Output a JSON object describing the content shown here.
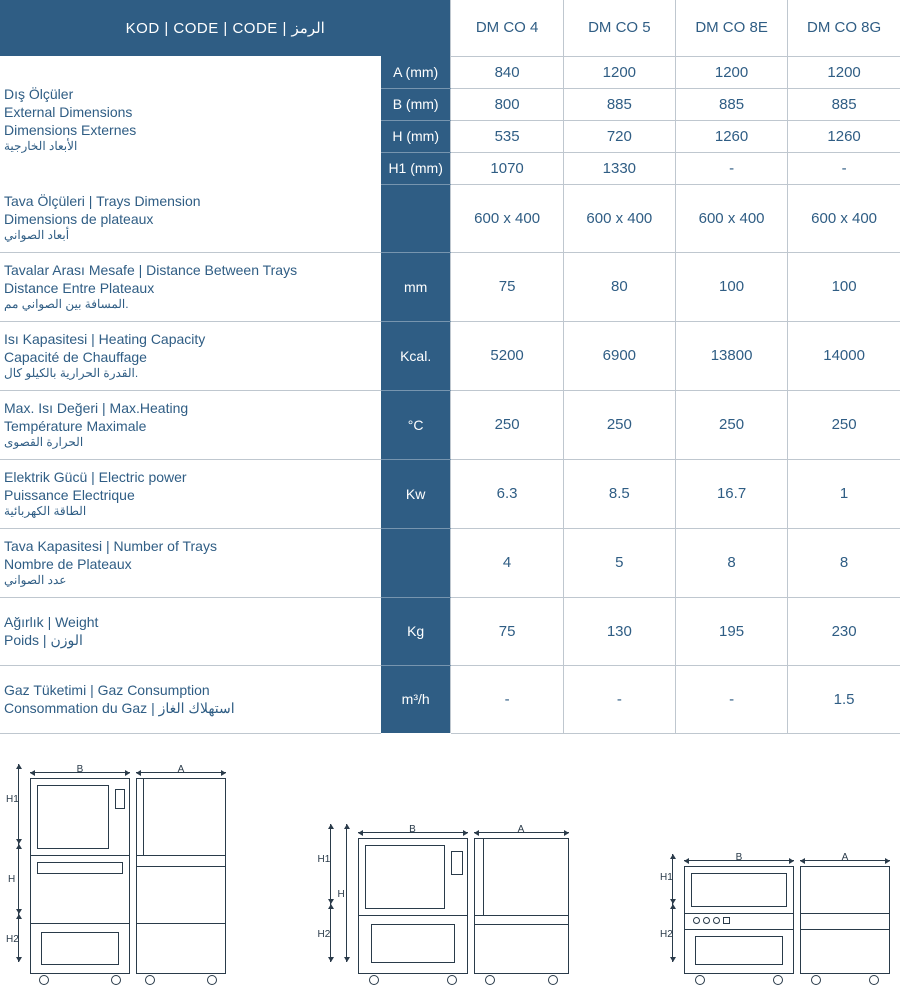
{
  "header": {
    "label": "KOD | CODE | CODE | الرمز",
    "cols": [
      "DM CO 4",
      "DM CO 5",
      "DM CO 8E",
      "DM CO 8G"
    ]
  },
  "dimLabel": {
    "l1": "Dış Ölçüler",
    "l2": "External Dimensions",
    "l3": "Dimensions Externes",
    "l4": "الأبعاد الخارجية"
  },
  "dimRows": [
    {
      "unit": "A (mm)",
      "v": [
        "840",
        "1200",
        "1200",
        "1200"
      ]
    },
    {
      "unit": "B (mm)",
      "v": [
        "800",
        "885",
        "885",
        "885"
      ]
    },
    {
      "unit": "H (mm)",
      "v": [
        "535",
        "720",
        "1260",
        "1260"
      ]
    },
    {
      "unit": "H1 (mm)",
      "v": [
        "1070",
        "1330",
        "-",
        "-"
      ]
    }
  ],
  "rows": [
    {
      "l1": "Tava Ölçüleri | Trays Dimension",
      "l2": "Dimensions de plateaux",
      "l3": "أبعاد الصواني",
      "unit": "",
      "v": [
        "600 x 400",
        "600 x 400",
        "600 x 400",
        "600 x 400"
      ]
    },
    {
      "l1": "Tavalar Arası Mesafe | Distance Between Trays",
      "l2": "Distance Entre Plateaux",
      "l3": "المسافة بين الصواني  مم.",
      "unit": "mm",
      "v": [
        "75",
        "80",
        "100",
        "100"
      ]
    },
    {
      "l1": "Isı Kapasitesi | Heating Capacity",
      "l2": "Capacité de Chauffage",
      "l3": "القدرة الحرارية بالكيلو كال.",
      "unit": "Kcal.",
      "v": [
        "5200",
        "6900",
        "13800",
        "14000"
      ]
    },
    {
      "l1": "Max. Isı Değeri | Max.Heating",
      "l2": "Température Maximale",
      "l3": "الحرارة القصوى",
      "unit": "°C",
      "v": [
        "250",
        "250",
        "250",
        "250"
      ]
    },
    {
      "l1": "Elektrik Gücü | Electric power",
      "l2": "Puissance Electrique",
      "l3": "الطاقة الكهربائية",
      "unit": "Kw",
      "v": [
        "6.3",
        "8.5",
        "16.7",
        "1"
      ]
    },
    {
      "l1": "Tava Kapasitesi | Number of Trays",
      "l2": "Nombre de Plateaux",
      "l3": "عدد الصواني",
      "unit": "",
      "v": [
        "4",
        "5",
        "8",
        "8"
      ]
    },
    {
      "l1": "Ağırlık | Weight",
      "l2": "Poids | الوزن",
      "l3": "",
      "unit": "Kg",
      "v": [
        "75",
        "130",
        "195",
        "230"
      ]
    },
    {
      "l1": "Gaz Tüketimi | Gaz Consumption",
      "l2": "Consommation du Gaz | استهلاك الغاز",
      "l3": "",
      "unit": "m³/h",
      "v": [
        "-",
        "-",
        "-",
        "1.5"
      ]
    }
  ],
  "diagrams": {
    "labels": {
      "A": "A",
      "B": "B",
      "H": "H",
      "H1": "H1",
      "H2": "H2"
    }
  }
}
